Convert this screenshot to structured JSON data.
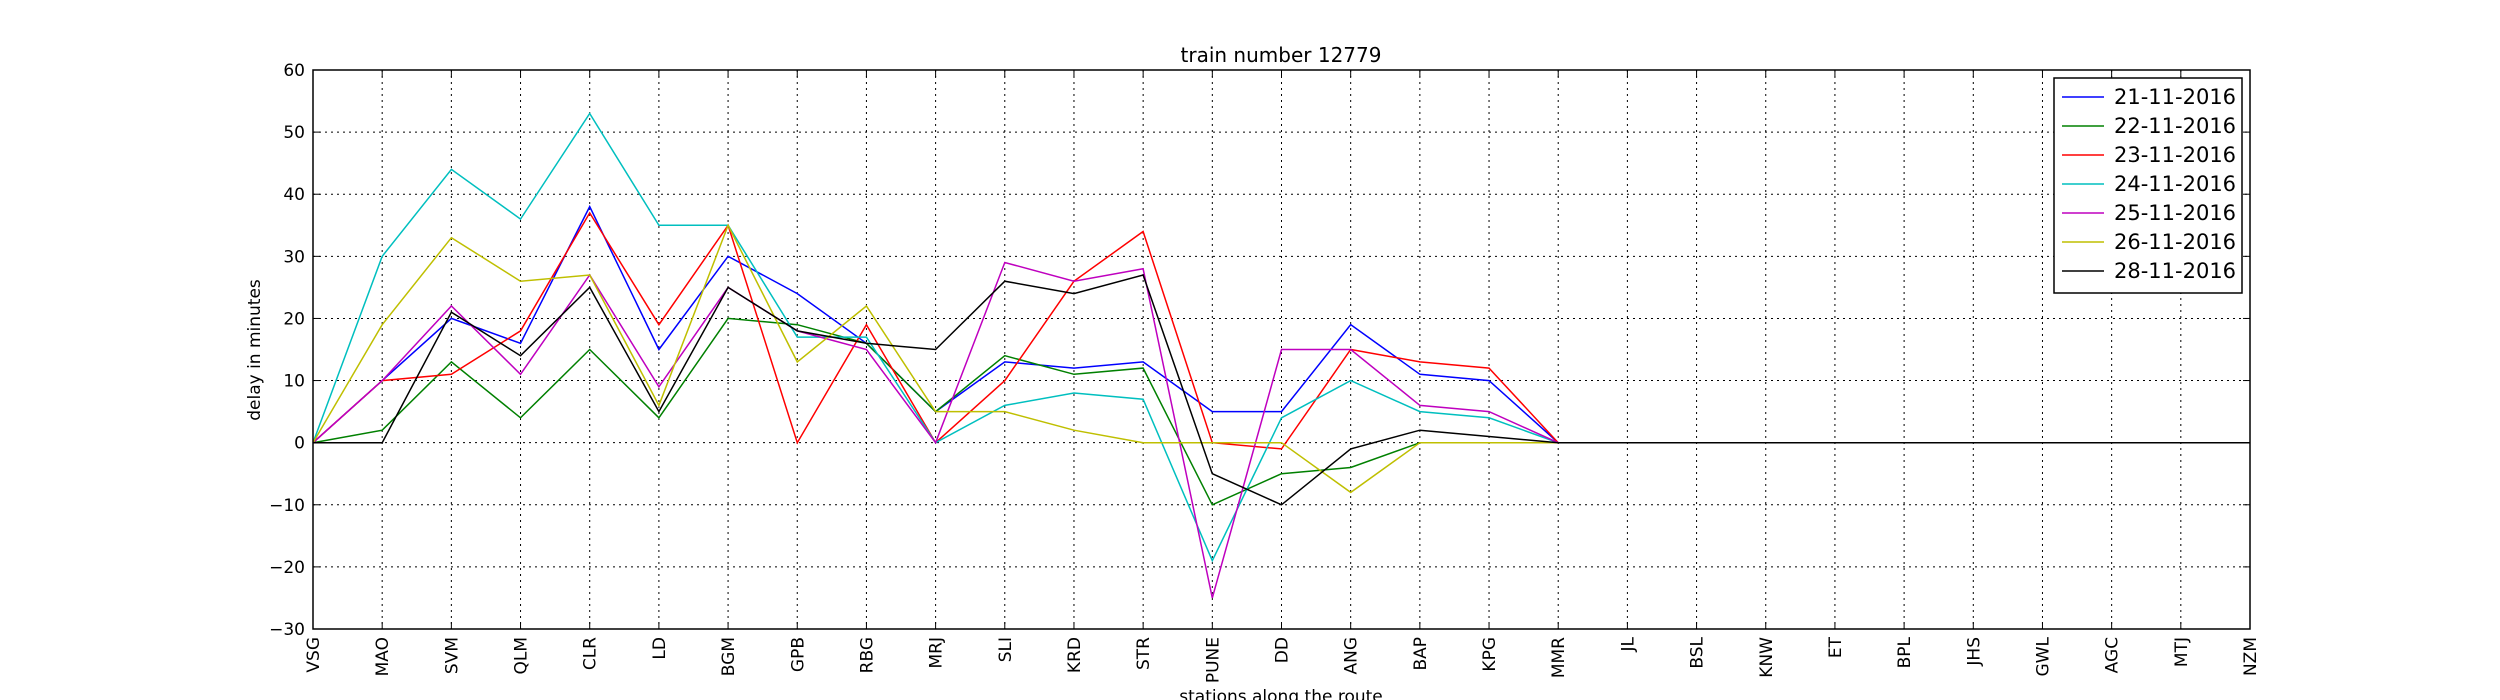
{
  "chart_data": {
    "type": "line",
    "title": "train number 12779",
    "xlabel": "stations along the route",
    "ylabel": "delay in minutes",
    "ylim": [
      -30,
      60
    ],
    "yticks": [
      -30,
      -20,
      -10,
      0,
      10,
      20,
      30,
      40,
      50,
      60
    ],
    "grid": true,
    "legend_position": "top-right",
    "categories": [
      "VSG",
      "MAO",
      "SVM",
      "QLM",
      "CLR",
      "LD",
      "BGM",
      "GPB",
      "RBG",
      "MRJ",
      "SLI",
      "KRD",
      "STR",
      "PUNE",
      "DD",
      "ANG",
      "BAP",
      "KPG",
      "MMR",
      "JL",
      "BSL",
      "KNW",
      "ET",
      "BPL",
      "JHS",
      "GWL",
      "AGC",
      "MTJ",
      "NZM"
    ],
    "series": [
      {
        "name": "21-11-2016",
        "color": "#0000ff",
        "values": [
          0,
          10,
          20,
          16,
          38,
          15,
          30,
          24,
          16,
          5,
          13,
          12,
          13,
          5,
          5,
          19,
          11,
          10,
          0,
          0,
          0,
          0,
          0,
          0,
          0,
          0,
          0,
          0,
          0
        ]
      },
      {
        "name": "22-11-2016",
        "color": "#008000",
        "values": [
          0,
          2,
          13,
          4,
          15,
          4,
          20,
          19,
          16,
          5,
          14,
          11,
          12,
          -10,
          -5,
          -4,
          0,
          0,
          0,
          0,
          0,
          0,
          0,
          0,
          0,
          0,
          0,
          0,
          0
        ]
      },
      {
        "name": "23-11-2016",
        "color": "#ff0000",
        "values": [
          0,
          10,
          11,
          18,
          37,
          19,
          35,
          0,
          19,
          0,
          10,
          26,
          34,
          0,
          -1,
          15,
          13,
          12,
          0,
          0,
          0,
          0,
          0,
          0,
          0,
          0,
          0,
          0,
          0
        ]
      },
      {
        "name": "24-11-2016",
        "color": "#00bfbf",
        "values": [
          0,
          30,
          44,
          36,
          53,
          35,
          35,
          17,
          17,
          0,
          6,
          8,
          7,
          -19,
          4,
          10,
          5,
          4,
          0,
          0,
          0,
          0,
          0,
          0,
          0,
          0,
          0,
          0,
          0
        ]
      },
      {
        "name": "25-11-2016",
        "color": "#bf00bf",
        "values": [
          0,
          10,
          22,
          11,
          27,
          9,
          25,
          18,
          15,
          0,
          29,
          26,
          28,
          -25,
          15,
          15,
          6,
          5,
          0,
          0,
          0,
          0,
          0,
          0,
          0,
          0,
          0,
          0,
          0
        ]
      },
      {
        "name": "26-11-2016",
        "color": "#bfbf00",
        "values": [
          0,
          19,
          33,
          26,
          27,
          6,
          35,
          13,
          22,
          5,
          5,
          2,
          0,
          0,
          0,
          -8,
          0,
          0,
          0,
          0,
          0,
          0,
          0,
          0,
          0,
          0,
          0,
          0,
          0
        ]
      },
      {
        "name": "28-11-2016",
        "color": "#000000",
        "values": [
          0,
          0,
          21,
          14,
          25,
          5,
          25,
          18,
          16,
          15,
          26,
          24,
          27,
          -5,
          -10,
          -1,
          2,
          1,
          0,
          0,
          0,
          0,
          0,
          0,
          0,
          0,
          0,
          0,
          0
        ]
      }
    ]
  }
}
